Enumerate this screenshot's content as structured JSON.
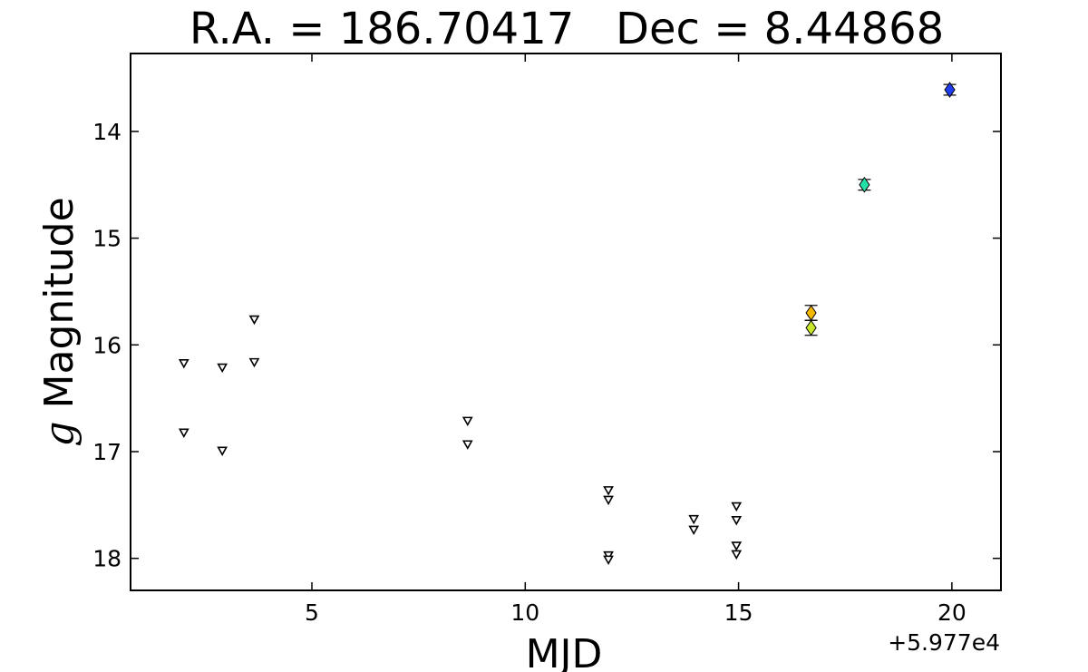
{
  "chart_data": {
    "type": "scatter",
    "title": "R.A. = 186.70417   Dec = 8.44868",
    "xlabel": "MJD",
    "ylabel_italic": "g",
    "ylabel_rest": " Magnitude",
    "x_offset_label": "+5.977e4",
    "xlim": [
      0.75,
      21.15
    ],
    "ylim": [
      18.3,
      13.27
    ],
    "y_inverted": true,
    "grid": false,
    "xticks": [
      5,
      10,
      15,
      20
    ],
    "yticks": [
      14,
      15,
      16,
      17,
      18
    ],
    "upper_limits": [
      {
        "x": 2.0,
        "y": 16.17
      },
      {
        "x": 2.0,
        "y": 16.82
      },
      {
        "x": 2.9,
        "y": 16.21
      },
      {
        "x": 2.9,
        "y": 16.99
      },
      {
        "x": 3.65,
        "y": 15.76
      },
      {
        "x": 3.65,
        "y": 16.16
      },
      {
        "x": 8.65,
        "y": 16.71
      },
      {
        "x": 8.65,
        "y": 16.93
      },
      {
        "x": 11.95,
        "y": 17.36
      },
      {
        "x": 11.95,
        "y": 17.45
      },
      {
        "x": 11.95,
        "y": 17.97
      },
      {
        "x": 11.95,
        "y": 18.01
      },
      {
        "x": 13.95,
        "y": 17.63
      },
      {
        "x": 13.95,
        "y": 17.73
      },
      {
        "x": 14.95,
        "y": 17.51
      },
      {
        "x": 14.95,
        "y": 17.64
      },
      {
        "x": 14.95,
        "y": 17.88
      },
      {
        "x": 14.95,
        "y": 17.96
      }
    ],
    "detections": [
      {
        "x": 16.7,
        "y": 15.7,
        "err": 0.07,
        "color": "#f5b800"
      },
      {
        "x": 16.7,
        "y": 15.84,
        "err": 0.07,
        "color": "#c8e62a"
      },
      {
        "x": 17.95,
        "y": 14.5,
        "err": 0.05,
        "color": "#22e0a8"
      },
      {
        "x": 19.95,
        "y": 13.61,
        "err": 0.05,
        "color": "#1f3cf0"
      }
    ]
  }
}
